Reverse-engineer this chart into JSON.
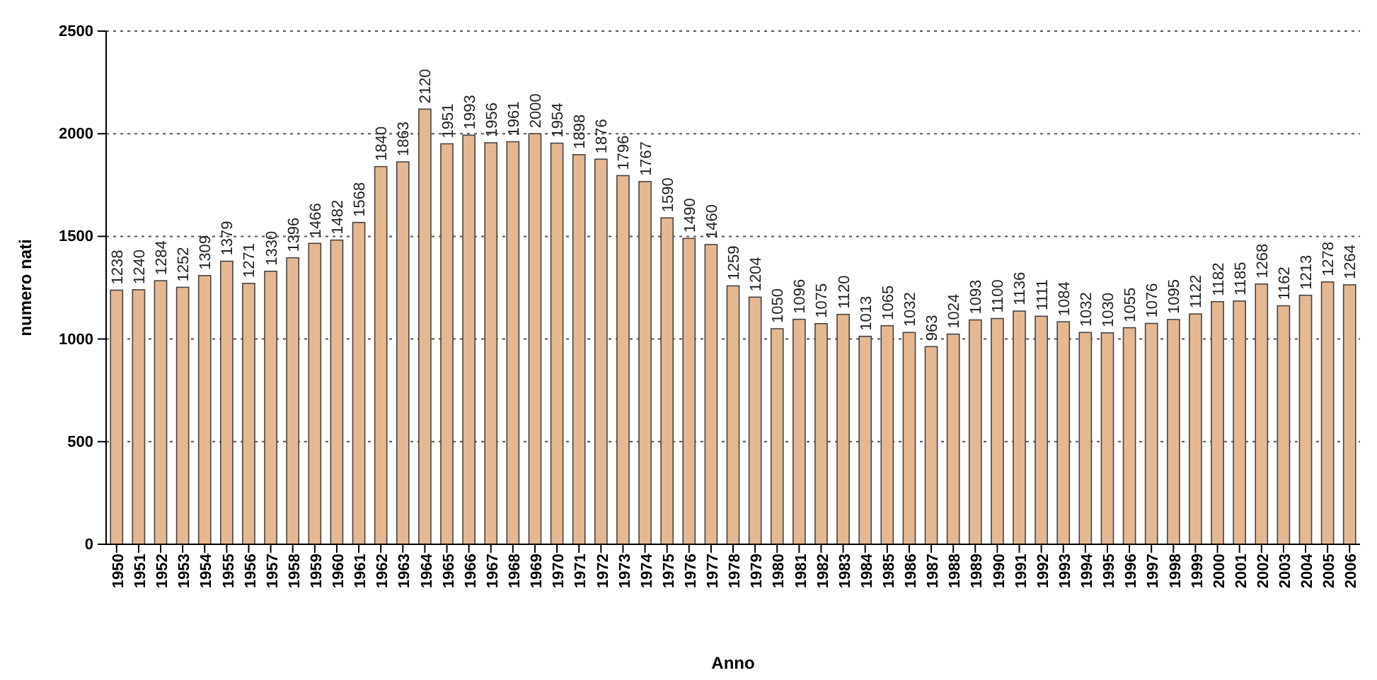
{
  "chart_data": {
    "type": "bar",
    "xlabel": "Anno",
    "ylabel": "numero nati",
    "categories": [
      "1950",
      "1951",
      "1952",
      "1953",
      "1954",
      "1955",
      "1956",
      "1957",
      "1958",
      "1959",
      "1960",
      "1961",
      "1962",
      "1963",
      "1964",
      "1965",
      "1966",
      "1967",
      "1968",
      "1969",
      "1970",
      "1971",
      "1972",
      "1973",
      "1974",
      "1975",
      "1976",
      "1977",
      "1978",
      "1979",
      "1980",
      "1981",
      "1982",
      "1983",
      "1984",
      "1985",
      "1986",
      "1987",
      "1988",
      "1989",
      "1990",
      "1991",
      "1992",
      "1993",
      "1994",
      "1995",
      "1996",
      "1997",
      "1998",
      "1999",
      "2000",
      "2001",
      "2002",
      "2003",
      "2004",
      "2005",
      "2006"
    ],
    "values": [
      1238,
      1240,
      1284,
      1252,
      1309,
      1379,
      1271,
      1330,
      1396,
      1466,
      1482,
      1568,
      1840,
      1863,
      2120,
      1951,
      1993,
      1956,
      1961,
      2000,
      1954,
      1898,
      1876,
      1796,
      1767,
      1590,
      1490,
      1460,
      1259,
      1204,
      1050,
      1096,
      1075,
      1120,
      1013,
      1065,
      1032,
      963,
      1024,
      1093,
      1100,
      1136,
      1111,
      1084,
      1032,
      1030,
      1055,
      1076,
      1095,
      1122,
      1182,
      1185,
      1268,
      1162,
      1213,
      1278,
      1264
    ],
    "color": "#e6b892",
    "ylim": [
      0,
      2500
    ],
    "yticks": [
      0,
      500,
      1000,
      1500,
      2000,
      2500
    ],
    "grid": "y",
    "data_labels": true
  }
}
